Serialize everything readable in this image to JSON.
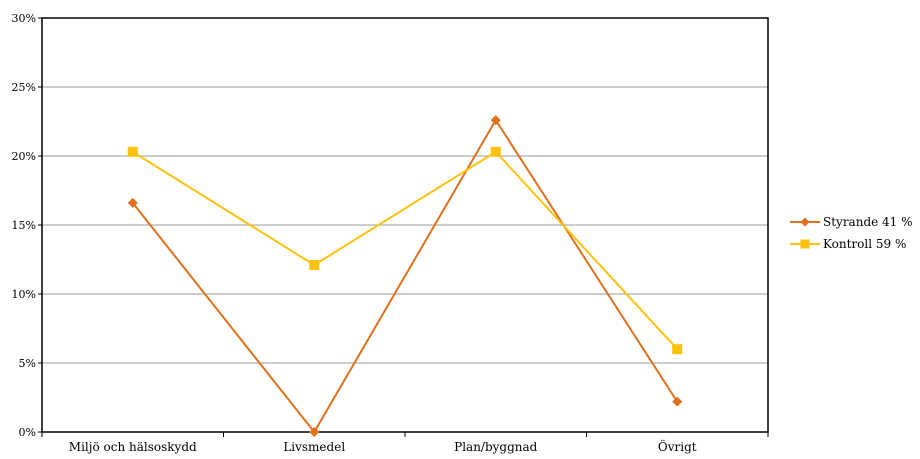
{
  "chart_data": {
    "type": "line",
    "title": "",
    "xlabel": "",
    "ylabel": "",
    "categories": [
      "Miljö och hälsoskydd",
      "Livsmedel",
      "Plan/byggnad",
      "Övrigt"
    ],
    "series": [
      {
        "name": "Styrande 41 %",
        "values": [
          16.6,
          0,
          22.6,
          2.2
        ],
        "color": "#e0701c",
        "marker": "diamond"
      },
      {
        "name": "Kontroll 59 %",
        "values": [
          20.3,
          12.1,
          20.3,
          6.0
        ],
        "color": "#ffc20e",
        "marker": "square"
      }
    ],
    "ylim": [
      0,
      30
    ],
    "yticks": [
      0,
      5,
      10,
      15,
      20,
      25,
      30
    ],
    "ytick_labels": [
      "0%",
      "5%",
      "10%",
      "15%",
      "20%",
      "25%",
      "30%"
    ],
    "grid": true,
    "legend_position": "right"
  }
}
